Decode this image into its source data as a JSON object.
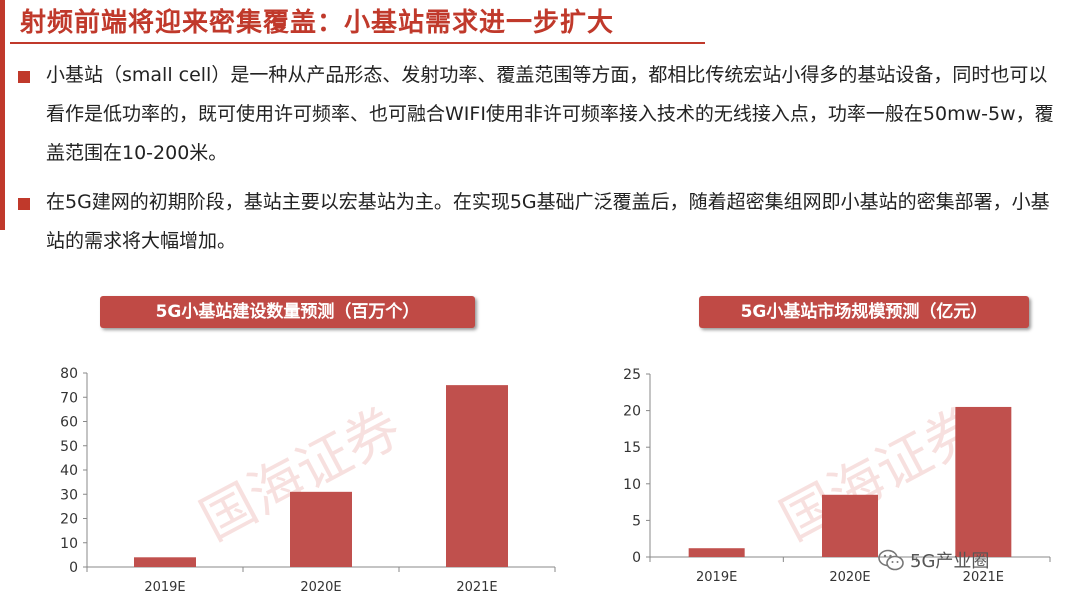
{
  "title": "射频前端将迎来密集覆盖：小基站需求进一步扩大",
  "bullets": [
    "小基站（small cell）是一种从产品形态、发射功率、覆盖范围等方面，都相比传统宏站小得多的基站设备，同时也可以看作是低功率的，既可使用许可频率、也可融合WIFI使用非许可频率接入技术的无线接入点，功率一般在50mw-5w，覆盖范围在10-200米。",
    "在5G建网的初期阶段，基站主要以宏基站为主。在实现5G基础广泛覆盖后，随着超密集组网即小基站的密集部署，小基站的需求将大幅增加。"
  ],
  "watermark_text": "国海证券",
  "wechat_label": "5G产业圈",
  "colors": {
    "accent": "#c0392b",
    "bar": "#c0504d"
  },
  "chart_data": [
    {
      "type": "bar",
      "title": "5G小基站建设数量预测（百万个）",
      "categories": [
        "2019E",
        "2020E",
        "2021E"
      ],
      "values": [
        4,
        31,
        75
      ],
      "ylim": [
        0,
        80
      ],
      "yticks": [
        0,
        10,
        20,
        30,
        40,
        50,
        60,
        70,
        80
      ],
      "xlabel": "",
      "ylabel": "",
      "grid": false
    },
    {
      "type": "bar",
      "title": "5G小基站市场规模预测（亿元）",
      "categories": [
        "2019E",
        "2020E",
        "2021E"
      ],
      "values": [
        1.2,
        8.5,
        20.5
      ],
      "ylim": [
        0,
        25
      ],
      "yticks": [
        0,
        5,
        10,
        15,
        20,
        25
      ],
      "xlabel": "",
      "ylabel": "",
      "grid": false
    }
  ]
}
